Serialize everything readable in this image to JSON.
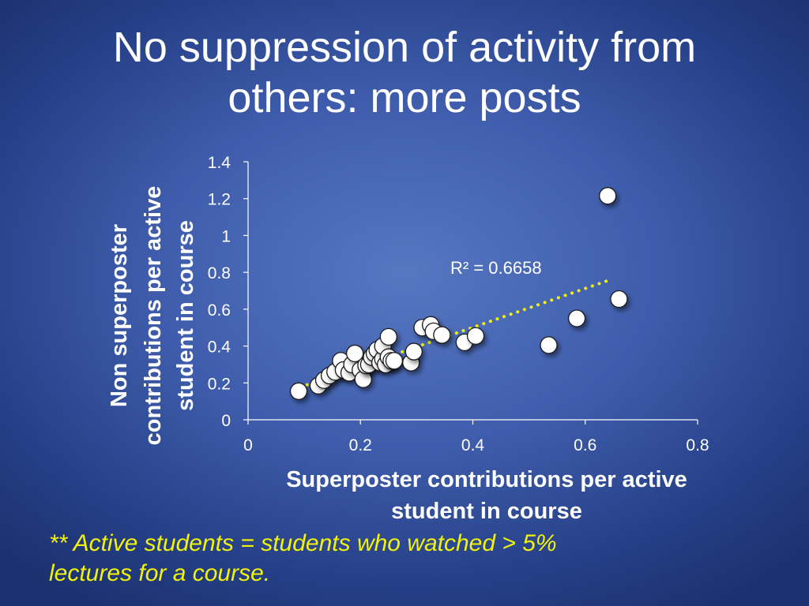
{
  "slide": {
    "title_line1": "No suppression of activity from",
    "title_line2": "others: more posts",
    "footnote_line1": "** Active students = students who watched > 5%",
    "footnote_line2": "lectures for a course."
  },
  "colors": {
    "background": "#3e5cab",
    "marker_fill": "#ffffff",
    "trendline": "#f2f20a",
    "footnote": "#f2f20a",
    "text": "#ffffff"
  },
  "chart_data": {
    "type": "scatter",
    "title": "",
    "xlabel_line1": "Superposter contributions per active",
    "xlabel_line2": "student in course",
    "ylabel_line1": "Non superposter",
    "ylabel_line2": "contributions per active",
    "ylabel_line3": "student in course",
    "xlim": [
      0,
      0.8
    ],
    "ylim": [
      0,
      1.4
    ],
    "xticks": [
      "0",
      "0.2",
      "0.4",
      "0.6",
      "0.8"
    ],
    "yticks": [
      "0",
      "0.2",
      "0.4",
      "0.6",
      "0.8",
      "1",
      "1.2",
      "1.4"
    ],
    "grid": false,
    "legend": "none",
    "trendline": {
      "kind": "linear",
      "x_range": [
        0.105,
        0.645
      ],
      "y_range": [
        0.19,
        0.76
      ],
      "label": "R² = 0.6658"
    },
    "series": [
      {
        "points": [
          [
            0.09,
            0.155
          ],
          [
            0.125,
            0.185
          ],
          [
            0.135,
            0.215
          ],
          [
            0.145,
            0.24
          ],
          [
            0.155,
            0.26
          ],
          [
            0.165,
            0.32
          ],
          [
            0.17,
            0.27
          ],
          [
            0.18,
            0.255
          ],
          [
            0.185,
            0.3
          ],
          [
            0.19,
            0.36
          ],
          [
            0.2,
            0.27
          ],
          [
            0.205,
            0.22
          ],
          [
            0.21,
            0.295
          ],
          [
            0.215,
            0.3
          ],
          [
            0.22,
            0.34
          ],
          [
            0.225,
            0.36
          ],
          [
            0.23,
            0.38
          ],
          [
            0.235,
            0.31
          ],
          [
            0.24,
            0.33
          ],
          [
            0.24,
            0.4
          ],
          [
            0.245,
            0.3
          ],
          [
            0.25,
            0.34
          ],
          [
            0.25,
            0.45
          ],
          [
            0.255,
            0.32
          ],
          [
            0.26,
            0.32
          ],
          [
            0.29,
            0.31
          ],
          [
            0.295,
            0.37
          ],
          [
            0.31,
            0.5
          ],
          [
            0.325,
            0.515
          ],
          [
            0.33,
            0.48
          ],
          [
            0.345,
            0.46
          ],
          [
            0.385,
            0.42
          ],
          [
            0.405,
            0.455
          ],
          [
            0.535,
            0.405
          ],
          [
            0.585,
            0.55
          ],
          [
            0.64,
            1.215
          ],
          [
            0.66,
            0.655
          ]
        ]
      }
    ]
  }
}
